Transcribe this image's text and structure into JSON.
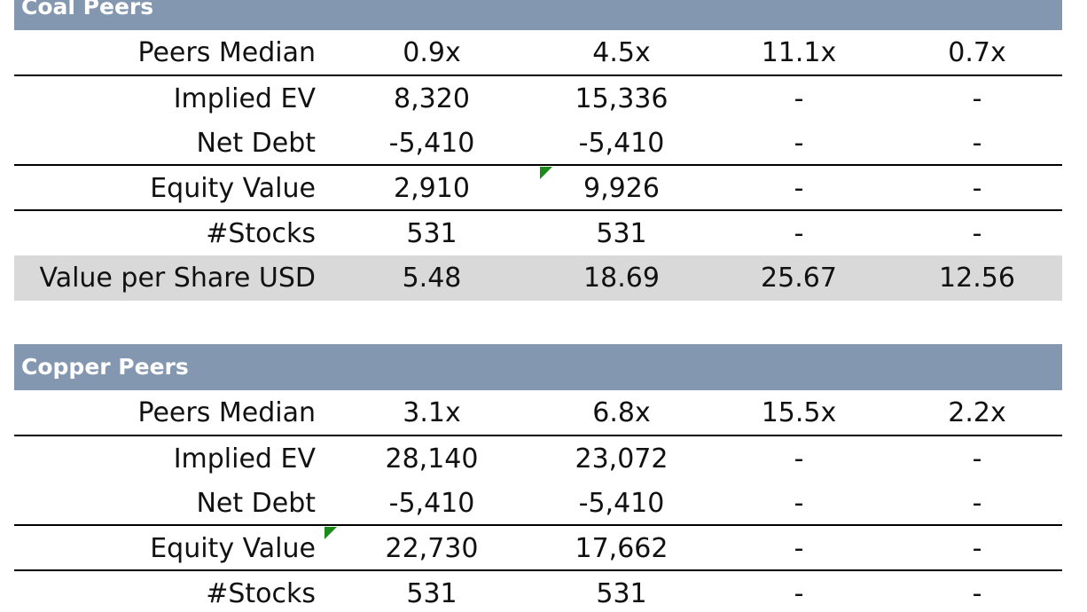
{
  "colors": {
    "header_bg": "#8497b0",
    "header_text": "#ffffff",
    "shaded_row": "#d9d9d9",
    "comment_flag": "#1a8a1a"
  },
  "coal": {
    "title": "Coal Peers",
    "rows": [
      {
        "label": "Peers Median",
        "values": [
          "0.9x",
          "4.5x",
          "11.1x",
          "0.7x"
        ]
      },
      {
        "label": "Implied EV",
        "values": [
          "8,320",
          "15,336",
          "-",
          "-"
        ]
      },
      {
        "label": "Net Debt",
        "values": [
          "-5,410",
          "-5,410",
          "-",
          "-"
        ]
      },
      {
        "label": "Equity Value",
        "values": [
          "2,910",
          "9,926",
          "-",
          "-"
        ]
      },
      {
        "label": "#Stocks",
        "values": [
          "531",
          "531",
          "-",
          "-"
        ]
      },
      {
        "label": "Value per Share USD",
        "values": [
          "5.48",
          "18.69",
          "25.67",
          "12.56"
        ]
      }
    ]
  },
  "copper": {
    "title": "Copper Peers",
    "rows": [
      {
        "label": "Peers Median",
        "values": [
          "3.1x",
          "6.8x",
          "15.5x",
          "2.2x"
        ]
      },
      {
        "label": "Implied EV",
        "values": [
          "28,140",
          "23,072",
          "-",
          "-"
        ]
      },
      {
        "label": "Net Debt",
        "values": [
          "-5,410",
          "-5,410",
          "-",
          "-"
        ]
      },
      {
        "label": "Equity Value",
        "values": [
          "22,730",
          "17,662",
          "-",
          "-"
        ]
      },
      {
        "label": "#Stocks",
        "values": [
          "531",
          "531",
          "-",
          "-"
        ]
      }
    ]
  }
}
